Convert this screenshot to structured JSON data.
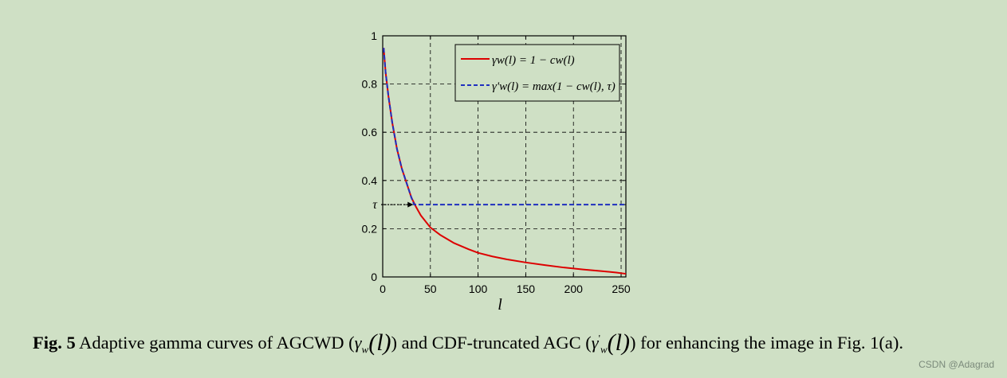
{
  "chart_data": {
    "type": "line",
    "xlabel": "l",
    "xlim": [
      0,
      255
    ],
    "ylim": [
      0,
      1
    ],
    "x_ticks": [
      0,
      50,
      100,
      150,
      200,
      250
    ],
    "y_ticks": [
      {
        "value": 0,
        "label": "0"
      },
      {
        "value": 0.2,
        "label": "0.2"
      },
      {
        "value": 0.3,
        "label": "τ"
      },
      {
        "value": 0.4,
        "label": "0.4"
      },
      {
        "value": 0.6,
        "label": "0.6"
      },
      {
        "value": 0.8,
        "label": "0.8"
      },
      {
        "value": 1,
        "label": "1"
      }
    ],
    "grid": true,
    "legend_position": "top-right",
    "tau": 0.3,
    "series": [
      {
        "name": "γw(l) = 1 − cw(l)",
        "color": "#dd0000",
        "style": "solid",
        "x": [
          1,
          3,
          6,
          10,
          15,
          20,
          25,
          30,
          35,
          40,
          50,
          60,
          75,
          90,
          100,
          115,
          130,
          150,
          170,
          190,
          210,
          230,
          245,
          255
        ],
        "y": [
          0.95,
          0.85,
          0.75,
          0.64,
          0.53,
          0.45,
          0.39,
          0.33,
          0.29,
          0.255,
          0.205,
          0.175,
          0.14,
          0.115,
          0.1,
          0.085,
          0.073,
          0.06,
          0.049,
          0.039,
          0.031,
          0.024,
          0.018,
          0.013
        ]
      },
      {
        "name": "γ'w(l) = max(1 − cw(l), τ)",
        "color": "#1f2fbf",
        "style": "dashed",
        "x": [
          1,
          3,
          6,
          10,
          15,
          20,
          25,
          30,
          33,
          255
        ],
        "y": [
          0.95,
          0.85,
          0.75,
          0.64,
          0.53,
          0.45,
          0.39,
          0.33,
          0.3,
          0.3
        ]
      }
    ]
  },
  "caption": {
    "fig_label": "Fig. 5",
    "text_1": " Adaptive gamma curves of AGCWD (",
    "sym_1": "γ",
    "sub_1": "w",
    "arg_1": "(l)",
    "text_2": ") and CDF-truncated AGC (",
    "sym_2": "γ",
    "sup_2": "'",
    "sub_2": "w",
    "arg_2": "(l)",
    "text_3": ") for enhancing the image in Fig. 1(a)."
  },
  "watermark": "CSDN @Adagrad",
  "colors": {
    "background": "#cfe0c5",
    "red_series": "#dd0000",
    "blue_series": "#1f2fbf"
  }
}
